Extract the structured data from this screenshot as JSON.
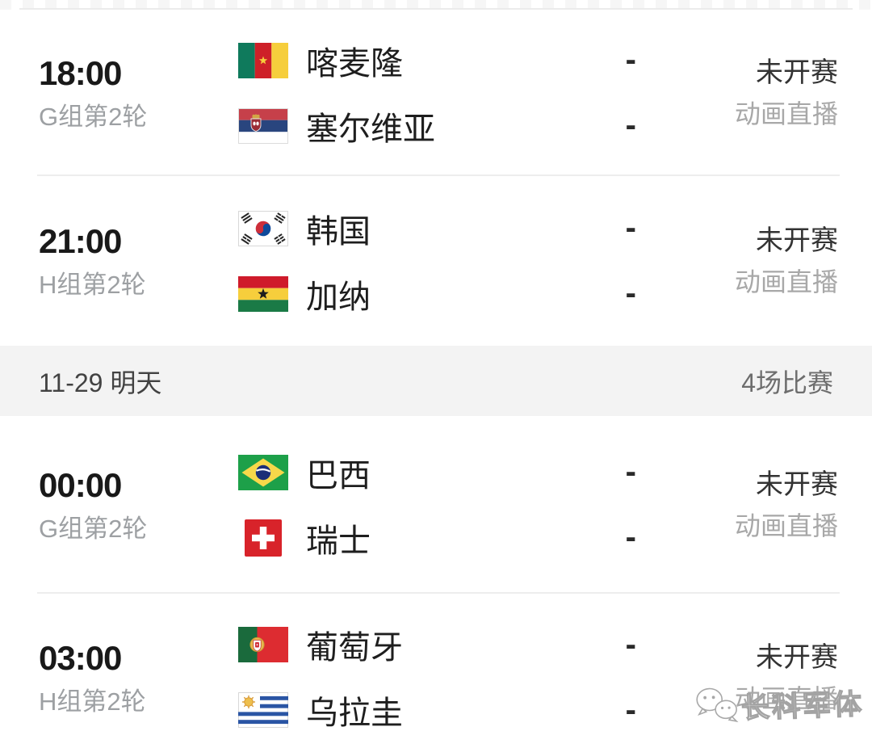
{
  "header": {
    "date_label": "11-29 明天",
    "match_count_label": "4场比赛"
  },
  "watermark": {
    "label": "长科军体",
    "icon": "wechat-bubbles"
  },
  "colors": {
    "status_dark": "#333333",
    "broadcast_gray": "#a8a8a8",
    "date_header_bg": "#f3f3f3"
  },
  "matches": [
    {
      "time": "18:00",
      "round": "G组第2轮",
      "status": "未开赛",
      "broadcast": "动画直播",
      "teams": [
        {
          "name": "喀麦隆",
          "flag": "cameroon",
          "score": "-"
        },
        {
          "name": "塞尔维亚",
          "flag": "serbia",
          "score": "-"
        }
      ]
    },
    {
      "time": "21:00",
      "round": "H组第2轮",
      "status": "未开赛",
      "broadcast": "动画直播",
      "teams": [
        {
          "name": "韩国",
          "flag": "south-korea",
          "score": "-"
        },
        {
          "name": "加纳",
          "flag": "ghana",
          "score": "-"
        }
      ]
    },
    {
      "time": "00:00",
      "round": "G组第2轮",
      "status": "未开赛",
      "broadcast": "动画直播",
      "teams": [
        {
          "name": "巴西",
          "flag": "brazil",
          "score": "-"
        },
        {
          "name": "瑞士",
          "flag": "switzerland",
          "score": "-"
        }
      ]
    },
    {
      "time": "03:00",
      "round": "H组第2轮",
      "status": "未开赛",
      "broadcast": "动画直播",
      "teams": [
        {
          "name": "葡萄牙",
          "flag": "portugal",
          "score": "-"
        },
        {
          "name": "乌拉圭",
          "flag": "uruguay",
          "score": "-"
        }
      ]
    }
  ]
}
